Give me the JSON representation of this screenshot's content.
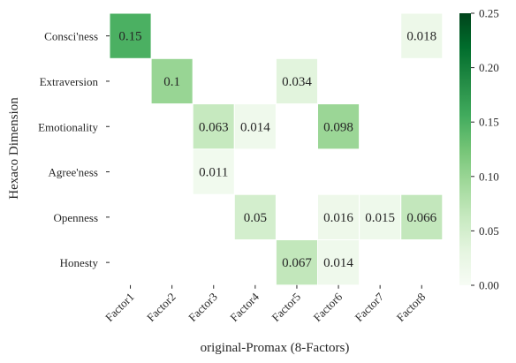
{
  "chart_data": {
    "type": "heatmap",
    "xlabel": "original-Promax (8-Factors)",
    "ylabel": "Hexaco Dimension",
    "x_categories": [
      "Factor1",
      "Factor2",
      "Factor3",
      "Factor4",
      "Factor5",
      "Factor6",
      "Factor7",
      "Factor8"
    ],
    "y_categories": [
      "Consci'ness",
      "Extraversion",
      "Emotionality",
      "Agree'ness",
      "Openness",
      "Honesty"
    ],
    "cells": [
      {
        "row": "Consci'ness",
        "col": "Factor1",
        "value": 0.15,
        "label": "0.15"
      },
      {
        "row": "Consci'ness",
        "col": "Factor8",
        "value": 0.018,
        "label": "0.018"
      },
      {
        "row": "Extraversion",
        "col": "Factor2",
        "value": 0.1,
        "label": "0.1"
      },
      {
        "row": "Extraversion",
        "col": "Factor5",
        "value": 0.034,
        "label": "0.034"
      },
      {
        "row": "Emotionality",
        "col": "Factor3",
        "value": 0.063,
        "label": "0.063"
      },
      {
        "row": "Emotionality",
        "col": "Factor4",
        "value": 0.014,
        "label": "0.014"
      },
      {
        "row": "Emotionality",
        "col": "Factor6",
        "value": 0.098,
        "label": "0.098"
      },
      {
        "row": "Agree'ness",
        "col": "Factor3",
        "value": 0.011,
        "label": "0.011"
      },
      {
        "row": "Openness",
        "col": "Factor4",
        "value": 0.05,
        "label": "0.05"
      },
      {
        "row": "Openness",
        "col": "Factor6",
        "value": 0.016,
        "label": "0.016"
      },
      {
        "row": "Openness",
        "col": "Factor7",
        "value": 0.015,
        "label": "0.015"
      },
      {
        "row": "Openness",
        "col": "Factor8",
        "value": 0.066,
        "label": "0.066"
      },
      {
        "row": "Honesty",
        "col": "Factor5",
        "value": 0.067,
        "label": "0.067"
      },
      {
        "row": "Honesty",
        "col": "Factor6",
        "value": 0.014,
        "label": "0.014"
      }
    ],
    "colorbar": {
      "range": [
        0,
        0.25
      ],
      "ticks": [
        "0.00",
        "0.05",
        "0.10",
        "0.15",
        "0.20",
        "0.25"
      ],
      "colormap": [
        "#f7fcf5",
        "#e5f5e0",
        "#c7e9c0",
        "#a1d99b",
        "#74c476",
        "#41ab5d",
        "#238b45",
        "#006d2c",
        "#00441b"
      ]
    }
  }
}
